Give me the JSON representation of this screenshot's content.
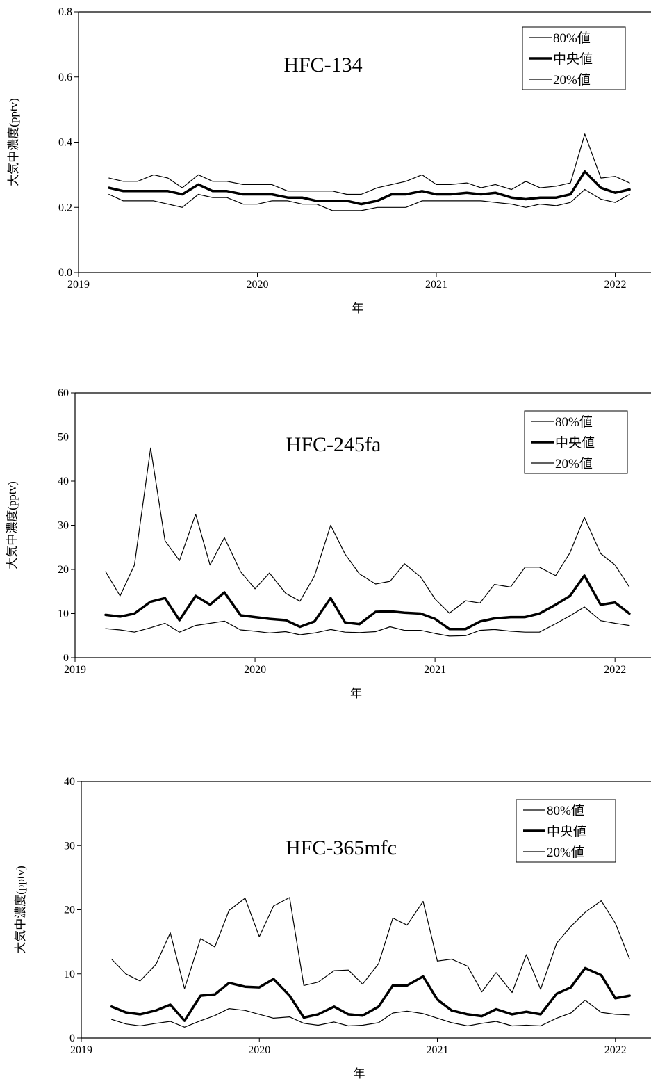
{
  "chart_data": [
    {
      "type": "line",
      "title": "HFC-134",
      "xlabel": "年",
      "ylabel": "大気中濃度(pptv)",
      "xlim": [
        2019,
        2022.2
      ],
      "ylim": [
        0,
        0.8
      ],
      "x_ticks": [
        "2019",
        "2020",
        "2021",
        "2022"
      ],
      "y_ticks": [
        "0.0",
        "0.2",
        "0.4",
        "0.6",
        "0.8"
      ],
      "legend_position": "top-right",
      "grid": false,
      "x": [
        2019.17,
        2019.25,
        2019.33,
        2019.42,
        2019.5,
        2019.58,
        2019.67,
        2019.75,
        2019.83,
        2019.92,
        2020.0,
        2020.08,
        2020.17,
        2020.25,
        2020.33,
        2020.42,
        2020.5,
        2020.58,
        2020.67,
        2020.75,
        2020.83,
        2020.92,
        2021.0,
        2021.08,
        2021.17,
        2021.25,
        2021.33,
        2021.42,
        2021.5,
        2021.58,
        2021.67,
        2021.75,
        2021.83,
        2021.92,
        2022.0,
        2022.08
      ],
      "series": [
        {
          "name": "80%値",
          "width": 1.2,
          "values": [
            0.29,
            0.28,
            0.28,
            0.3,
            0.29,
            0.26,
            0.3,
            0.28,
            0.28,
            0.27,
            0.27,
            0.27,
            0.25,
            0.25,
            0.25,
            0.25,
            0.24,
            0.24,
            0.26,
            0.27,
            0.28,
            0.3,
            0.27,
            0.27,
            0.275,
            0.26,
            0.27,
            0.255,
            0.28,
            0.26,
            0.265,
            0.275,
            0.425,
            0.29,
            0.295,
            0.275
          ]
        },
        {
          "name": "中央値",
          "width": 3.5,
          "values": [
            0.26,
            0.25,
            0.25,
            0.25,
            0.25,
            0.24,
            0.27,
            0.25,
            0.25,
            0.24,
            0.24,
            0.24,
            0.23,
            0.23,
            0.22,
            0.22,
            0.22,
            0.21,
            0.22,
            0.24,
            0.24,
            0.25,
            0.24,
            0.24,
            0.245,
            0.24,
            0.245,
            0.23,
            0.225,
            0.23,
            0.23,
            0.24,
            0.31,
            0.26,
            0.245,
            0.255
          ]
        },
        {
          "name": "20%値",
          "width": 1.2,
          "values": [
            0.24,
            0.22,
            0.22,
            0.22,
            0.21,
            0.2,
            0.24,
            0.23,
            0.23,
            0.21,
            0.21,
            0.22,
            0.22,
            0.21,
            0.21,
            0.19,
            0.19,
            0.19,
            0.2,
            0.2,
            0.2,
            0.22,
            0.22,
            0.22,
            0.22,
            0.22,
            0.215,
            0.21,
            0.2,
            0.21,
            0.205,
            0.215,
            0.255,
            0.225,
            0.215,
            0.24
          ]
        }
      ]
    },
    {
      "type": "line",
      "title": "HFC-245fa",
      "xlabel": "年",
      "ylabel": "大気中濃度(pptv)",
      "xlim": [
        2019,
        2022.2
      ],
      "ylim": [
        0,
        60
      ],
      "x_ticks": [
        "2019",
        "2020",
        "2021",
        "2022"
      ],
      "y_ticks": [
        "0",
        "10",
        "20",
        "30",
        "40",
        "50",
        "60"
      ],
      "legend_position": "top-right",
      "grid": false,
      "x": [
        2019.17,
        2019.25,
        2019.33,
        2019.42,
        2019.5,
        2019.58,
        2019.67,
        2019.75,
        2019.83,
        2019.92,
        2020.0,
        2020.08,
        2020.17,
        2020.25,
        2020.33,
        2020.42,
        2020.5,
        2020.58,
        2020.67,
        2020.75,
        2020.83,
        2020.92,
        2021.0,
        2021.08,
        2021.17,
        2021.25,
        2021.33,
        2021.42,
        2021.5,
        2021.58,
        2021.67,
        2021.75,
        2021.83,
        2021.92,
        2022.0,
        2022.08
      ],
      "series": [
        {
          "name": "80%値",
          "width": 1.2,
          "values": [
            19.5,
            14,
            21,
            47.5,
            26.5,
            22,
            32.5,
            21,
            27.2,
            19.5,
            15.6,
            19.2,
            14.6,
            12.8,
            18.5,
            30,
            23.5,
            19,
            16.7,
            17.3,
            21.3,
            18.3,
            13.3,
            10.1,
            12.9,
            12.4,
            16.6,
            16,
            20.5,
            20.5,
            18.6,
            23.8,
            31.8,
            23.6,
            21,
            16
          ]
        },
        {
          "name": "中央値",
          "width": 3.5,
          "values": [
            9.7,
            9.3,
            10,
            12.7,
            13.5,
            8.5,
            14,
            12,
            14.8,
            9.6,
            9.2,
            8.8,
            8.5,
            7,
            8.2,
            13.5,
            8,
            7.6,
            10.4,
            10.5,
            10.2,
            10,
            8.8,
            6.5,
            6.5,
            8.2,
            8.9,
            9.2,
            9.2,
            10,
            12,
            14,
            18.6,
            12,
            12.5,
            10
          ]
        },
        {
          "name": "20%値",
          "width": 1.2,
          "values": [
            6.6,
            6.3,
            5.8,
            6.8,
            7.8,
            5.8,
            7.3,
            7.8,
            8.3,
            6.3,
            6,
            5.6,
            5.9,
            5.2,
            5.6,
            6.4,
            5.8,
            5.7,
            5.9,
            7,
            6.2,
            6.2,
            5.5,
            4.9,
            5,
            6.2,
            6.4,
            6,
            5.8,
            5.8,
            7.7,
            9.5,
            11.5,
            8.4,
            7.8,
            7.3
          ]
        }
      ]
    },
    {
      "type": "line",
      "title": "HFC-365mfc",
      "xlabel": "年",
      "ylabel": "大気中濃度(pptv)",
      "xlim": [
        2019,
        2022.2
      ],
      "ylim": [
        0,
        40
      ],
      "x_ticks": [
        "2019",
        "2020",
        "2021",
        "2022"
      ],
      "y_ticks": [
        "0",
        "10",
        "20",
        "30",
        "40"
      ],
      "legend_position": "top-right",
      "grid": false,
      "x": [
        2019.17,
        2019.25,
        2019.33,
        2019.42,
        2019.5,
        2019.58,
        2019.67,
        2019.75,
        2019.83,
        2019.92,
        2020.0,
        2020.08,
        2020.17,
        2020.25,
        2020.33,
        2020.42,
        2020.5,
        2020.58,
        2020.67,
        2020.75,
        2020.83,
        2020.92,
        2021.0,
        2021.08,
        2021.17,
        2021.25,
        2021.33,
        2021.42,
        2021.5,
        2021.58,
        2021.67,
        2021.75,
        2021.83,
        2021.92,
        2022.0,
        2022.08
      ],
      "series": [
        {
          "name": "80%値",
          "width": 1.2,
          "values": [
            12.3,
            10,
            8.9,
            11.5,
            16.4,
            7.7,
            15.5,
            14.2,
            19.9,
            21.8,
            15.8,
            20.6,
            21.9,
            8.2,
            8.7,
            10.5,
            10.6,
            8.4,
            11.6,
            18.7,
            17.6,
            21.3,
            12,
            12.3,
            11.2,
            7.2,
            10.2,
            7.1,
            13,
            7.6,
            14.8,
            17.4,
            19.6,
            21.4,
            17.9,
            12.3
          ]
        },
        {
          "name": "中央値",
          "width": 3.5,
          "values": [
            4.9,
            4,
            3.7,
            4.3,
            5.2,
            2.7,
            6.6,
            6.8,
            8.6,
            8,
            7.9,
            9.2,
            6.6,
            3.2,
            3.7,
            4.9,
            3.7,
            3.5,
            4.9,
            8.2,
            8.2,
            9.6,
            6,
            4.3,
            3.7,
            3.4,
            4.5,
            3.7,
            4.1,
            3.7,
            6.9,
            7.9,
            10.9,
            9.8,
            6.2,
            6.6
          ]
        },
        {
          "name": "20%値",
          "width": 1.2,
          "values": [
            2.9,
            2.2,
            1.9,
            2.3,
            2.6,
            1.7,
            2.7,
            3.5,
            4.6,
            4.3,
            3.7,
            3.1,
            3.3,
            2.3,
            2,
            2.5,
            1.9,
            2,
            2.4,
            3.9,
            4.2,
            3.8,
            3.1,
            2.4,
            1.9,
            2.3,
            2.6,
            1.9,
            2,
            1.9,
            3.1,
            3.9,
            5.9,
            4,
            3.7,
            3.6
          ]
        }
      ]
    }
  ]
}
